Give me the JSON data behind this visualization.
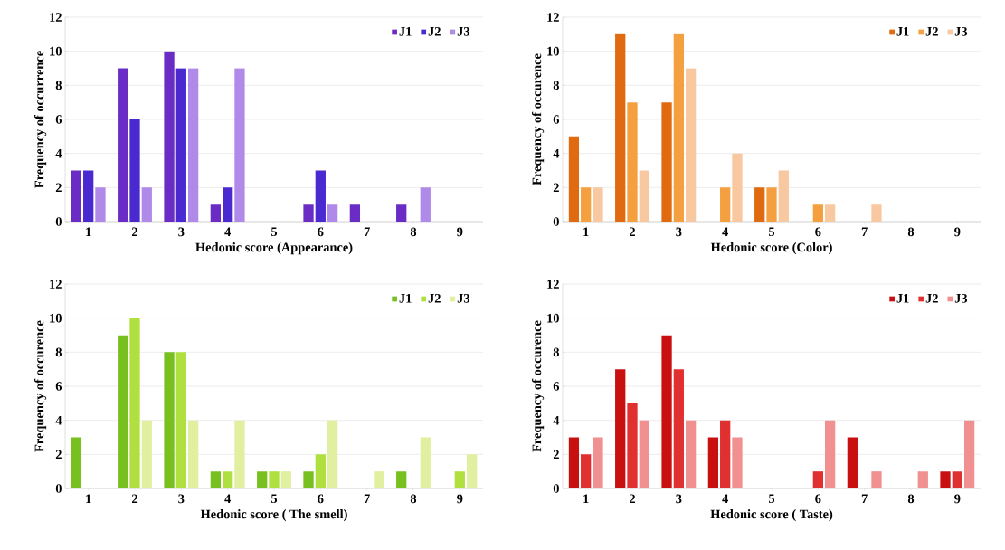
{
  "chart_data": [
    {
      "type": "bar",
      "xlabel": "Hedonic score  (Appearance)",
      "ylabel": "Frequency of occurrence",
      "categories": [
        "1",
        "2",
        "3",
        "4",
        "5",
        "6",
        "7",
        "8",
        "9"
      ],
      "ylim": [
        0,
        12
      ],
      "yticks": [
        0,
        2,
        4,
        6,
        8,
        10,
        12
      ],
      "grid": "y",
      "legend": "top right",
      "series": [
        {
          "name": "J1",
          "color": "#6a2cc4",
          "values": [
            3,
            9,
            10,
            1,
            0,
            1,
            1,
            1,
            0
          ]
        },
        {
          "name": "J2",
          "color": "#4a2ad0",
          "values": [
            3,
            6,
            9,
            2,
            0,
            3,
            0,
            0,
            0
          ]
        },
        {
          "name": "J3",
          "color": "#b08ae8",
          "values": [
            2,
            2,
            9,
            9,
            0,
            1,
            0,
            2,
            0
          ]
        }
      ]
    },
    {
      "type": "bar",
      "xlabel": "Hedonic score (Color)",
      "ylabel": "Frequency of occurence",
      "categories": [
        "1",
        "2",
        "3",
        "4",
        "5",
        "6",
        "7",
        "8",
        "9"
      ],
      "ylim": [
        0,
        12
      ],
      "yticks": [
        0,
        2,
        4,
        6,
        8,
        10,
        12
      ],
      "grid": "y",
      "legend": "top right",
      "series": [
        {
          "name": "J1",
          "color": "#e06a10",
          "values": [
            5,
            11,
            7,
            0,
            2,
            0,
            0,
            0,
            0
          ]
        },
        {
          "name": "J2",
          "color": "#f5a040",
          "values": [
            2,
            7,
            11,
            2,
            2,
            1,
            0,
            0,
            0
          ]
        },
        {
          "name": "J3",
          "color": "#f8c8a0",
          "values": [
            2,
            3,
            9,
            4,
            3,
            1,
            1,
            0,
            0
          ]
        }
      ]
    },
    {
      "type": "bar",
      "xlabel": "Hedonic score ( The smell)",
      "ylabel": "Frequency of occurence",
      "categories": [
        "1",
        "2",
        "3",
        "4",
        "5",
        "6",
        "7",
        "8",
        "9"
      ],
      "ylim": [
        0,
        12
      ],
      "yticks": [
        0,
        2,
        4,
        6,
        8,
        10,
        12
      ],
      "grid": "y",
      "legend": "top right",
      "series": [
        {
          "name": "J1",
          "color": "#78c020",
          "values": [
            3,
            9,
            8,
            1,
            1,
            1,
            0,
            1,
            0
          ]
        },
        {
          "name": "J2",
          "color": "#b0e040",
          "values": [
            0,
            10,
            8,
            1,
            1,
            2,
            0,
            0,
            1
          ]
        },
        {
          "name": "J3",
          "color": "#e0f0a0",
          "values": [
            0,
            4,
            4,
            4,
            1,
            4,
            1,
            3,
            2
          ]
        }
      ]
    },
    {
      "type": "bar",
      "xlabel": "Hedonic score ( Taste)",
      "ylabel": "Frequency of occurence",
      "categories": [
        "1",
        "2",
        "3",
        "4",
        "5",
        "6",
        "7",
        "8",
        "9"
      ],
      "ylim": [
        0,
        12
      ],
      "yticks": [
        0,
        2,
        4,
        6,
        8,
        10,
        12
      ],
      "grid": "y",
      "legend": "top right",
      "series": [
        {
          "name": "J1",
          "color": "#c81010",
          "values": [
            3,
            7,
            9,
            3,
            0,
            0,
            3,
            0,
            1
          ]
        },
        {
          "name": "J2",
          "color": "#e03030",
          "values": [
            2,
            5,
            7,
            4,
            0,
            1,
            0,
            0,
            1
          ]
        },
        {
          "name": "J3",
          "color": "#f09090",
          "values": [
            3,
            4,
            4,
            3,
            0,
            4,
            1,
            1,
            4
          ]
        }
      ]
    }
  ]
}
